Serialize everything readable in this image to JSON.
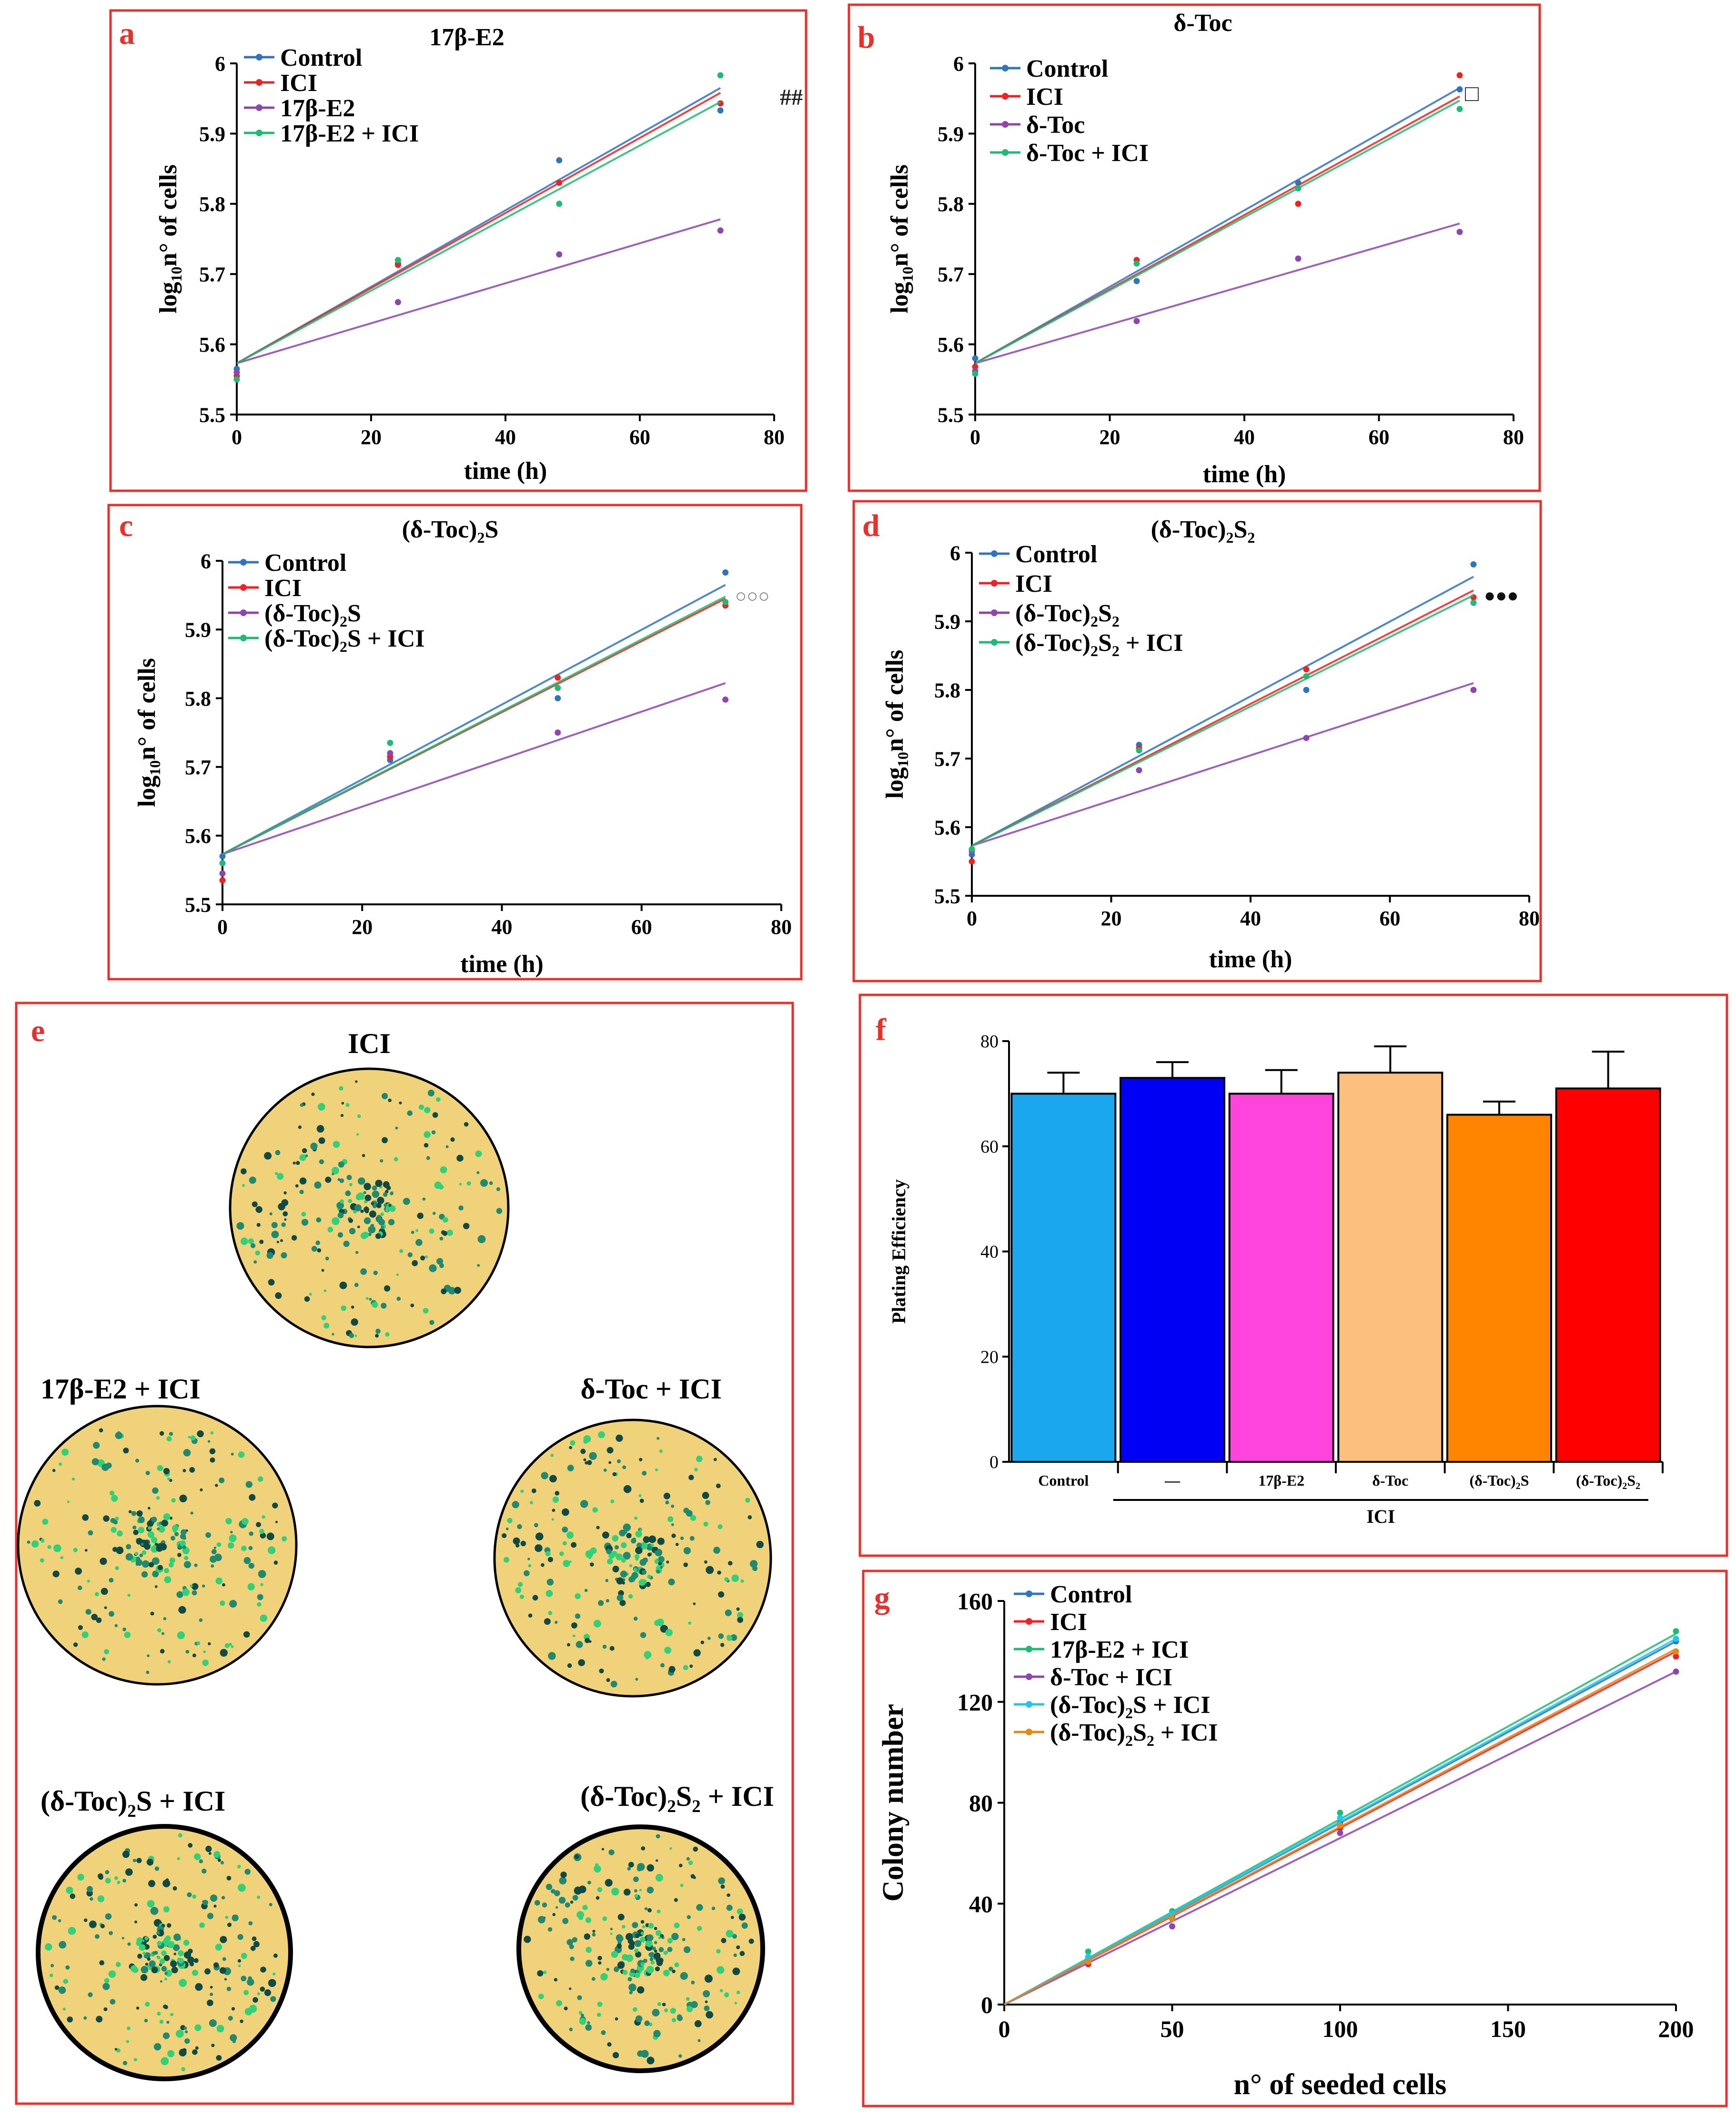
{
  "figure": {
    "colors": {
      "frame": "#e8302c",
      "panel_letter": "#e8302c",
      "blue": "#2f74c0",
      "red": "#ee2222",
      "purple": "#8e45b0",
      "green": "#1dbb73",
      "cyan": "#1cc8f0",
      "orange": "#e08a1a",
      "dish_fill": "#f0d27a",
      "colony_teal": "#1f8a72",
      "colony_green": "#2fd27a",
      "colony_dark": "#0f4a44"
    }
  },
  "chart_data": [
    {
      "panel": "a",
      "type": "scatter",
      "title": "17β-E2",
      "xlabel": "time (h)",
      "ylabel_main": "log",
      "ylabel_sub": "10",
      "ylabel_rest": "n° of cells",
      "xlim": [
        0,
        80
      ],
      "ylim": [
        5.5,
        6.0
      ],
      "xticks": [
        0,
        20,
        40,
        60,
        80
      ],
      "yticks": [
        5.5,
        5.6,
        5.7,
        5.8,
        5.9,
        6.0
      ],
      "xtick_labels": [
        "0",
        "20",
        "40",
        "60",
        "80"
      ],
      "ytick_labels": [
        "5.5",
        "5.6",
        "5.7",
        "5.8",
        "5.9",
        "6"
      ],
      "annotation": "##",
      "series": [
        {
          "name": "Control",
          "name_parts": [
            "Control"
          ],
          "color": "#2f74c0",
          "x": [
            0,
            24,
            48,
            72
          ],
          "y": [
            5.565,
            5.715,
            5.862,
            5.933
          ],
          "fit": [
            5.573,
            5.965
          ]
        },
        {
          "name": "ICI",
          "name_parts": [
            "ICI"
          ],
          "color": "#ee2222",
          "x": [
            0,
            24,
            48,
            72
          ],
          "y": [
            5.555,
            5.713,
            5.83,
            5.943
          ],
          "fit": [
            5.573,
            5.958
          ]
        },
        {
          "name": "17β-E2",
          "name_parts": [
            "17β-E2"
          ],
          "color": "#8e45b0",
          "x": [
            0,
            24,
            48,
            72
          ],
          "y": [
            5.56,
            5.66,
            5.728,
            5.762
          ],
          "fit": [
            5.573,
            5.778
          ]
        },
        {
          "name": "17β-E2 + ICI",
          "name_parts": [
            "17β-E2 + ICI"
          ],
          "color": "#1dbb73",
          "x": [
            0,
            24,
            48,
            72
          ],
          "y": [
            5.55,
            5.72,
            5.8,
            5.983
          ],
          "fit": [
            5.573,
            5.945
          ]
        }
      ]
    },
    {
      "panel": "b",
      "type": "scatter",
      "title": "δ-Toc",
      "xlabel": "time (h)",
      "ylabel_main": "log",
      "ylabel_sub": "10",
      "ylabel_rest": "n° of cells",
      "xlim": [
        0,
        80
      ],
      "ylim": [
        5.5,
        6.0
      ],
      "xticks": [
        0,
        20,
        40,
        60,
        80
      ],
      "yticks": [
        5.5,
        5.6,
        5.7,
        5.8,
        5.9,
        6.0
      ],
      "xtick_labels": [
        "0",
        "20",
        "40",
        "60",
        "80"
      ],
      "ytick_labels": [
        "5.5",
        "5.6",
        "5.7",
        "5.8",
        "5.9",
        "6"
      ],
      "annotation": "□",
      "series": [
        {
          "name": "Control",
          "name_parts": [
            "Control"
          ],
          "color": "#2f74c0",
          "x": [
            0,
            24,
            48,
            72
          ],
          "y": [
            5.58,
            5.69,
            5.83,
            5.963
          ],
          "fit": [
            5.573,
            5.965
          ]
        },
        {
          "name": "ICI",
          "name_parts": [
            "ICI"
          ],
          "color": "#ee2222",
          "x": [
            0,
            24,
            48,
            72
          ],
          "y": [
            5.568,
            5.72,
            5.8,
            5.983
          ],
          "fit": [
            5.573,
            5.953
          ]
        },
        {
          "name": "δ-Toc",
          "name_parts": [
            "δ-Toc"
          ],
          "color": "#8e45b0",
          "x": [
            0,
            24,
            48,
            72
          ],
          "y": [
            5.562,
            5.633,
            5.722,
            5.76
          ],
          "fit": [
            5.573,
            5.772
          ]
        },
        {
          "name": "δ-Toc + ICI",
          "name_parts": [
            "δ-Toc + ICI"
          ],
          "color": "#1dbb73",
          "x": [
            0,
            24,
            48,
            72
          ],
          "y": [
            5.558,
            5.715,
            5.822,
            5.935
          ],
          "fit": [
            5.573,
            5.947
          ]
        }
      ]
    },
    {
      "panel": "c",
      "type": "scatter",
      "title_parts": [
        "(δ-Toc)",
        "2",
        "S"
      ],
      "xlabel": "time (h)",
      "ylabel_main": "log",
      "ylabel_sub": "10",
      "ylabel_rest": "n° of cells",
      "xlim": [
        0,
        80
      ],
      "ylim": [
        5.5,
        6.0
      ],
      "xticks": [
        0,
        20,
        40,
        60,
        80
      ],
      "yticks": [
        5.5,
        5.6,
        5.7,
        5.8,
        5.9,
        6.0
      ],
      "xtick_labels": [
        "0",
        "20",
        "40",
        "60",
        "80"
      ],
      "ytick_labels": [
        "5.5",
        "5.6",
        "5.7",
        "5.8",
        "5.9",
        "6"
      ],
      "annotation": "○○○",
      "series": [
        {
          "name": "Control",
          "name_parts": [
            "Control"
          ],
          "color": "#2f74c0",
          "x": [
            0,
            24,
            48,
            72
          ],
          "y": [
            5.57,
            5.71,
            5.8,
            5.983
          ],
          "fit": [
            5.573,
            5.965
          ]
        },
        {
          "name": "ICI",
          "name_parts": [
            "ICI"
          ],
          "color": "#ee2222",
          "x": [
            0,
            24,
            48,
            72
          ],
          "y": [
            5.535,
            5.715,
            5.83,
            5.935
          ],
          "fit": [
            5.573,
            5.945
          ]
        },
        {
          "name": "(δ-Toc)2S",
          "name_parts": [
            "(δ-Toc)",
            "2",
            "S"
          ],
          "color": "#8e45b0",
          "x": [
            0,
            24,
            48,
            72
          ],
          "y": [
            5.545,
            5.72,
            5.75,
            5.798
          ],
          "fit": [
            5.573,
            5.822
          ]
        },
        {
          "name": "(δ-Toc)2S + ICI",
          "name_parts": [
            "(δ-Toc)",
            "2",
            "S + ICI"
          ],
          "color": "#1dbb73",
          "x": [
            0,
            24,
            48,
            72
          ],
          "y": [
            5.56,
            5.735,
            5.815,
            5.94
          ],
          "fit": [
            5.573,
            5.948
          ]
        }
      ]
    },
    {
      "panel": "d",
      "type": "scatter",
      "title_parts": [
        "(δ-Toc)",
        "2",
        "S",
        "2",
        ""
      ],
      "xlabel": "time (h)",
      "ylabel_main": "log",
      "ylabel_sub": "10",
      "ylabel_rest": "n° of cells",
      "xlim": [
        0,
        80
      ],
      "ylim": [
        5.5,
        6.0
      ],
      "xticks": [
        0,
        20,
        40,
        60,
        80
      ],
      "yticks": [
        5.5,
        5.6,
        5.7,
        5.8,
        5.9,
        6.0
      ],
      "xtick_labels": [
        "0",
        "20",
        "40",
        "60",
        "80"
      ],
      "ytick_labels": [
        "5.5",
        "5.6",
        "5.7",
        "5.8",
        "5.9",
        "6"
      ],
      "annotation": "●●●",
      "series": [
        {
          "name": "Control",
          "name_parts": [
            "Control"
          ],
          "color": "#2f74c0",
          "x": [
            0,
            24,
            48,
            72
          ],
          "y": [
            5.56,
            5.72,
            5.8,
            5.983
          ],
          "fit": [
            5.573,
            5.965
          ]
        },
        {
          "name": "ICI",
          "name_parts": [
            "ICI"
          ],
          "color": "#ee2222",
          "x": [
            0,
            24,
            48,
            72
          ],
          "y": [
            5.55,
            5.715,
            5.83,
            5.935
          ],
          "fit": [
            5.573,
            5.945
          ]
        },
        {
          "name": "(δ-Toc)2S2",
          "name_parts": [
            "(δ-Toc)",
            "2",
            "S",
            "2",
            ""
          ],
          "color": "#8e45b0",
          "x": [
            0,
            24,
            48,
            72
          ],
          "y": [
            5.565,
            5.683,
            5.73,
            5.8
          ],
          "fit": [
            5.573,
            5.81
          ]
        },
        {
          "name": "(δ-Toc)2S2 + ICI",
          "name_parts": [
            "(δ-Toc)",
            "2",
            "S",
            "2",
            " + ICI"
          ],
          "color": "#1dbb73",
          "x": [
            0,
            24,
            48,
            72
          ],
          "y": [
            5.568,
            5.712,
            5.82,
            5.927
          ],
          "fit": [
            5.573,
            5.938
          ]
        }
      ]
    },
    {
      "panel": "f",
      "type": "bar",
      "ylabel": "Plating Efficiency",
      "ylim": [
        0,
        80
      ],
      "yticks": [
        0,
        20,
        40,
        60,
        80
      ],
      "ytick_labels": [
        "0",
        "20",
        "40",
        "60",
        "80"
      ],
      "group_label": "ICI",
      "bars": [
        {
          "label_parts": [
            "Control"
          ],
          "value": 70,
          "error": 4,
          "color": "#1aa7ee"
        },
        {
          "label_parts": [
            "—"
          ],
          "value": 73,
          "error": 3,
          "color": "#0000f5"
        },
        {
          "label_parts": [
            "17β-E2"
          ],
          "value": 70,
          "error": 4.5,
          "color": "#ff44dd"
        },
        {
          "label_parts": [
            "δ-Toc"
          ],
          "value": 74,
          "error": 5,
          "color": "#fcbf7e"
        },
        {
          "label_parts": [
            "(δ-Toc)",
            "2",
            "S"
          ],
          "value": 66,
          "error": 2.5,
          "color": "#ff8400"
        },
        {
          "label_parts": [
            "(δ-Toc)",
            "2",
            "S",
            "2",
            ""
          ],
          "value": 71,
          "error": 7,
          "color": "#ff0000"
        }
      ]
    },
    {
      "panel": "g",
      "type": "scatter",
      "xlabel": "n° of seeded cells",
      "ylabel": "Colony number",
      "xlim": [
        0,
        200
      ],
      "ylim": [
        0,
        160
      ],
      "xticks": [
        0,
        50,
        100,
        150,
        200
      ],
      "yticks": [
        0,
        40,
        80,
        120,
        160
      ],
      "xtick_labels": [
        "0",
        "50",
        "100",
        "150",
        "200"
      ],
      "ytick_labels": [
        "0",
        "40",
        "80",
        "120",
        "160"
      ],
      "series": [
        {
          "name": "Control",
          "name_parts": [
            "Control"
          ],
          "color": "#2f74c0",
          "x": [
            25,
            50,
            100,
            200
          ],
          "y": [
            18,
            35,
            72,
            144
          ],
          "fit": [
            0,
            144
          ]
        },
        {
          "name": "ICI",
          "name_parts": [
            "ICI"
          ],
          "color": "#ee2222",
          "x": [
            25,
            50,
            100,
            200
          ],
          "y": [
            16,
            34,
            70,
            138
          ],
          "fit": [
            0,
            140
          ]
        },
        {
          "name": "17β-E2 + ICI",
          "name_parts": [
            "17β-E2 + ICI"
          ],
          "color": "#1dbb73",
          "x": [
            25,
            50,
            100,
            200
          ],
          "y": [
            21,
            37,
            76,
            148
          ],
          "fit": [
            0,
            147
          ]
        },
        {
          "name": "δ-Toc + ICI",
          "name_parts": [
            "δ-Toc + ICI"
          ],
          "color": "#8e45b0",
          "x": [
            25,
            50,
            100,
            200
          ],
          "y": [
            17,
            31,
            68,
            132
          ],
          "fit": [
            0,
            132
          ]
        },
        {
          "name": "(δ-Toc)2S + ICI",
          "name_parts": [
            "(δ-Toc)",
            "2",
            "S + ICI"
          ],
          "color": "#1cc8f0",
          "x": [
            25,
            50,
            100,
            200
          ],
          "y": [
            19,
            36,
            74,
            145
          ],
          "fit": [
            0,
            145
          ]
        },
        {
          "name": "(δ-Toc)2S2 + ICI",
          "name_parts": [
            "(δ-Toc)",
            "2",
            "S",
            "2",
            " + ICI"
          ],
          "color": "#e08a1a",
          "x": [
            25,
            50,
            100,
            200
          ],
          "y": [
            17,
            34,
            71,
            140
          ],
          "fit": [
            0,
            141
          ]
        }
      ]
    }
  ],
  "panel_e": {
    "letter": "e",
    "dishes": [
      {
        "label_parts": [
          "ICI"
        ]
      },
      {
        "label_parts": [
          "17β-E2 + ICI"
        ]
      },
      {
        "label_parts": [
          "δ-Toc + ICI"
        ]
      },
      {
        "label_parts": [
          "(δ-Toc)",
          "2",
          "S + ICI"
        ]
      },
      {
        "label_parts": [
          "(δ-Toc)",
          "2",
          "S",
          "2",
          " + ICI"
        ]
      }
    ]
  }
}
